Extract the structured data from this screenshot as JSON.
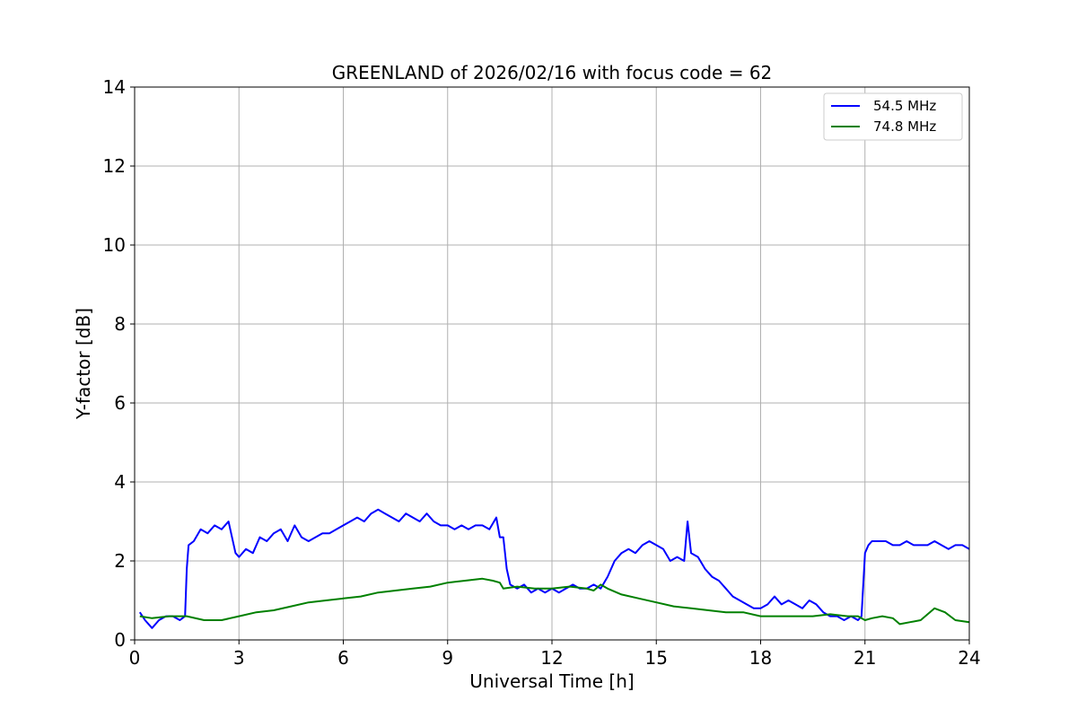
{
  "chart_data": {
    "type": "line",
    "title": "GREENLAND of 2026/02/16 with focus code = 62",
    "xlabel": "Universal Time [h]",
    "ylabel": "Y-factor [dB]",
    "xlim": [
      0,
      24
    ],
    "ylim": [
      0,
      14
    ],
    "xticks": [
      0,
      3,
      6,
      9,
      12,
      15,
      18,
      21,
      24
    ],
    "yticks": [
      0,
      2,
      4,
      6,
      8,
      10,
      12,
      14
    ],
    "grid": true,
    "legend_position": "upper-right",
    "series": [
      {
        "name": "54.5 MHz",
        "color": "#0000ff",
        "x": [
          0.15,
          0.3,
          0.5,
          0.7,
          0.9,
          1.1,
          1.3,
          1.45,
          1.5,
          1.55,
          1.7,
          1.9,
          2.1,
          2.3,
          2.5,
          2.7,
          2.9,
          3.0,
          3.2,
          3.4,
          3.6,
          3.8,
          4.0,
          4.2,
          4.4,
          4.6,
          4.8,
          5.0,
          5.2,
          5.4,
          5.6,
          5.8,
          6.0,
          6.2,
          6.4,
          6.6,
          6.8,
          7.0,
          7.2,
          7.4,
          7.6,
          7.8,
          8.0,
          8.2,
          8.4,
          8.6,
          8.8,
          9.0,
          9.2,
          9.4,
          9.6,
          9.8,
          10.0,
          10.2,
          10.4,
          10.5,
          10.6,
          10.7,
          10.8,
          11.0,
          11.2,
          11.4,
          11.6,
          11.8,
          12.0,
          12.2,
          12.4,
          12.6,
          12.8,
          13.0,
          13.2,
          13.4,
          13.6,
          13.8,
          14.0,
          14.2,
          14.4,
          14.6,
          14.8,
          15.0,
          15.2,
          15.4,
          15.6,
          15.8,
          15.9,
          16.0,
          16.2,
          16.4,
          16.6,
          16.8,
          17.0,
          17.2,
          17.4,
          17.6,
          17.8,
          18.0,
          18.2,
          18.4,
          18.6,
          18.8,
          19.0,
          19.2,
          19.4,
          19.6,
          19.8,
          20.0,
          20.2,
          20.4,
          20.6,
          20.8,
          20.9,
          21.0,
          21.1,
          21.2,
          21.4,
          21.6,
          21.8,
          22.0,
          22.2,
          22.4,
          22.6,
          22.8,
          23.0,
          23.2,
          23.4,
          23.6,
          23.8,
          24.0
        ],
        "values": [
          0.7,
          0.5,
          0.3,
          0.5,
          0.6,
          0.6,
          0.5,
          0.6,
          1.8,
          2.4,
          2.5,
          2.8,
          2.7,
          2.9,
          2.8,
          3.0,
          2.2,
          2.1,
          2.3,
          2.2,
          2.6,
          2.5,
          2.7,
          2.8,
          2.5,
          2.9,
          2.6,
          2.5,
          2.6,
          2.7,
          2.7,
          2.8,
          2.9,
          3.0,
          3.1,
          3.0,
          3.2,
          3.3,
          3.2,
          3.1,
          3.0,
          3.2,
          3.1,
          3.0,
          3.2,
          3.0,
          2.9,
          2.9,
          2.8,
          2.9,
          2.8,
          2.9,
          2.9,
          2.8,
          3.1,
          2.6,
          2.6,
          1.8,
          1.4,
          1.3,
          1.4,
          1.2,
          1.3,
          1.2,
          1.3,
          1.2,
          1.3,
          1.4,
          1.3,
          1.3,
          1.4,
          1.3,
          1.6,
          2.0,
          2.2,
          2.3,
          2.2,
          2.4,
          2.5,
          2.4,
          2.3,
          2.0,
          2.1,
          2.0,
          3.0,
          2.2,
          2.1,
          1.8,
          1.6,
          1.5,
          1.3,
          1.1,
          1.0,
          0.9,
          0.8,
          0.8,
          0.9,
          1.1,
          0.9,
          1.0,
          0.9,
          0.8,
          1.0,
          0.9,
          0.7,
          0.6,
          0.6,
          0.5,
          0.6,
          0.5,
          0.6,
          2.2,
          2.4,
          2.5,
          2.5,
          2.5,
          2.4,
          2.4,
          2.5,
          2.4,
          2.4,
          2.4,
          2.5,
          2.4,
          2.3,
          2.4,
          2.4,
          2.3
        ]
      },
      {
        "name": "74.8 MHz",
        "color": "#008000",
        "x": [
          0.15,
          0.5,
          1.0,
          1.5,
          2.0,
          2.5,
          3.0,
          3.5,
          4.0,
          4.5,
          5.0,
          5.5,
          6.0,
          6.5,
          7.0,
          7.5,
          8.0,
          8.5,
          9.0,
          9.5,
          10.0,
          10.3,
          10.5,
          10.6,
          11.0,
          11.5,
          12.0,
          12.5,
          13.0,
          13.2,
          13.4,
          13.6,
          14.0,
          14.5,
          15.0,
          15.5,
          16.0,
          16.5,
          17.0,
          17.5,
          18.0,
          18.5,
          19.0,
          19.5,
          20.0,
          20.5,
          20.8,
          21.0,
          21.2,
          21.5,
          21.8,
          22.0,
          22.3,
          22.6,
          23.0,
          23.3,
          23.6,
          24.0
        ],
        "values": [
          0.6,
          0.55,
          0.6,
          0.6,
          0.5,
          0.5,
          0.6,
          0.7,
          0.75,
          0.85,
          0.95,
          1.0,
          1.05,
          1.1,
          1.2,
          1.25,
          1.3,
          1.35,
          1.45,
          1.5,
          1.55,
          1.5,
          1.45,
          1.3,
          1.35,
          1.3,
          1.3,
          1.35,
          1.3,
          1.25,
          1.4,
          1.3,
          1.15,
          1.05,
          0.95,
          0.85,
          0.8,
          0.75,
          0.7,
          0.7,
          0.6,
          0.6,
          0.6,
          0.6,
          0.65,
          0.6,
          0.6,
          0.5,
          0.55,
          0.6,
          0.55,
          0.4,
          0.45,
          0.5,
          0.8,
          0.7,
          0.5,
          0.45
        ]
      }
    ]
  }
}
